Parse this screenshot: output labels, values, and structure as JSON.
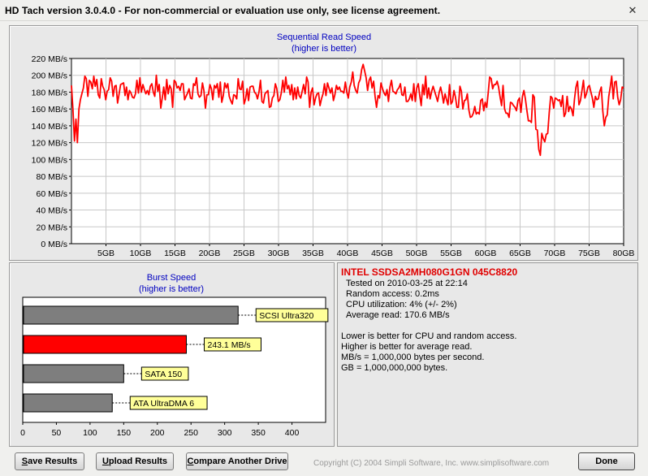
{
  "window": {
    "title": "HD Tach version 3.0.4.0  - For non-commercial or evaluation use only, see license agreement.",
    "close_icon": "close-icon"
  },
  "sequential_chart": {
    "title": "Sequential Read Speed",
    "subtitle": "(higher is better)",
    "line_color": "#ff0000"
  },
  "burst_chart": {
    "title": "Burst Speed",
    "subtitle": "(higher is better)"
  },
  "chart_data": [
    {
      "type": "line",
      "title": "Sequential Read Speed",
      "subtitle": "(higher is better)",
      "xlabel": "",
      "ylabel": "",
      "ylim": [
        0,
        220
      ],
      "xlim": [
        0,
        80
      ],
      "y_ticks": [
        0,
        20,
        40,
        60,
        80,
        100,
        120,
        140,
        160,
        180,
        200,
        220
      ],
      "y_tick_labels": [
        "0 MB/s",
        "20 MB/s",
        "40 MB/s",
        "60 MB/s",
        "80 MB/s",
        "100 MB/s",
        "120 MB/s",
        "140 MB/s",
        "160 MB/s",
        "180 MB/s",
        "200 MB/s",
        "220 MB/s"
      ],
      "x_ticks": [
        5,
        10,
        15,
        20,
        25,
        30,
        35,
        40,
        45,
        50,
        55,
        60,
        65,
        70,
        75,
        80
      ],
      "x_tick_labels": [
        "5GB",
        "10GB",
        "15GB",
        "20GB",
        "25GB",
        "30GB",
        "35GB",
        "40GB",
        "45GB",
        "50GB",
        "55GB",
        "60GB",
        "65GB",
        "70GB",
        "75GB",
        "80GB"
      ],
      "grid": true,
      "series": [
        {
          "values": [
            188,
            160,
            122,
            148,
            120,
            160,
            171,
            178,
            185,
            199,
            196,
            175,
            194,
            192,
            184,
            199,
            187,
            195,
            177,
            173,
            196,
            187,
            183,
            171,
            181,
            183,
            197,
            193,
            175,
            187,
            188,
            167,
            178,
            189,
            190,
            191,
            176,
            186,
            171,
            182,
            179,
            174,
            173,
            178,
            194,
            179,
            197,
            180,
            189,
            183,
            178,
            182,
            177,
            187,
            190,
            180,
            175,
            200,
            181,
            189,
            161,
            173,
            186,
            171,
            195,
            178,
            188,
            184,
            162,
            194,
            192,
            185,
            187,
            182,
            190,
            190,
            171,
            175,
            179,
            184,
            173,
            172,
            190,
            188,
            197,
            178,
            174,
            176,
            191,
            182,
            161,
            177,
            177,
            189,
            184,
            171,
            188,
            185,
            190,
            174,
            192,
            168,
            176,
            191,
            185,
            190,
            175,
            170,
            166,
            177,
            176,
            172,
            196,
            184,
            183,
            193,
            166,
            172,
            184,
            170,
            186,
            187,
            187,
            180,
            178,
            172,
            180,
            194,
            169,
            167,
            178,
            180,
            182,
            162,
            163,
            173,
            176,
            190,
            184,
            169,
            171,
            179,
            194,
            180,
            198,
            184,
            188,
            177,
            189,
            171,
            185,
            172,
            186,
            176,
            173,
            181,
            189,
            178,
            198,
            192,
            162,
            180,
            185,
            165,
            173,
            178,
            179,
            164,
            172,
            178,
            190,
            176,
            191,
            185,
            179,
            185,
            170,
            177,
            188,
            183,
            186,
            181,
            181,
            179,
            192,
            180,
            173,
            186,
            192,
            204,
            188,
            182,
            179,
            191,
            195,
            207,
            213,
            205,
            197,
            182,
            194,
            198,
            185,
            193,
            175,
            162,
            176,
            173,
            191,
            184,
            179,
            176,
            183,
            169,
            186,
            194,
            181,
            180,
            178,
            183,
            185,
            190,
            177,
            176,
            186,
            169,
            169,
            172,
            178,
            170,
            190,
            169,
            185,
            190,
            176,
            164,
            189,
            177,
            199,
            173,
            185,
            172,
            181,
            187,
            181,
            175,
            169,
            179,
            186,
            178,
            167,
            178,
            171,
            165,
            189,
            166,
            169,
            182,
            174,
            162,
            162,
            187,
            181,
            160,
            170,
            171,
            178,
            159,
            150,
            151,
            155,
            163,
            154,
            156,
            154,
            170,
            172,
            158,
            168,
            162,
            179,
            198,
            196,
            184,
            189,
            189,
            193,
            186,
            174,
            164,
            188,
            160,
            155,
            155,
            150,
            168,
            167,
            164,
            162,
            158,
            170,
            173,
            156,
            175,
            182,
            172,
            158,
            146,
            146,
            144,
            177,
            174,
            136,
            135,
            112,
            105,
            131,
            125,
            121,
            130,
            131,
            156,
            175,
            173,
            161,
            173,
            172,
            170,
            171,
            163,
            176,
            151,
            155,
            175,
            157,
            163,
            160,
            152,
            172,
            186,
            193,
            165,
            170,
            182,
            194,
            173,
            178,
            186,
            188,
            180,
            173,
            162,
            175,
            171,
            172,
            181,
            186,
            158,
            140,
            150,
            153,
            175,
            186,
            199,
            172,
            192,
            193,
            174,
            165,
            171,
            186,
            185
          ],
          "color": "#ff0000"
        }
      ]
    },
    {
      "type": "bar",
      "orientation": "horizontal",
      "title": "Burst Speed",
      "subtitle": "(higher is better)",
      "xlim": [
        0,
        450
      ],
      "x_ticks": [
        0,
        50,
        100,
        150,
        200,
        250,
        300,
        350,
        400
      ],
      "categories": [
        "SCSI Ultra320",
        "243.1 MB/s",
        "SATA 150",
        "ATA UltraDMA 6"
      ],
      "values": [
        320,
        243.1,
        150,
        133
      ],
      "colors": [
        "#7e7e7e",
        "#ff0000",
        "#7e7e7e",
        "#7e7e7e"
      ],
      "label_fill": "#ffff99"
    }
  ],
  "info": {
    "drive_name": "INTEL SSDSA2MH080G1GN 045C8820",
    "lines": [
      "Tested on 2010-03-25 at 22:14",
      "Random access: 0.2ms",
      "CPU utilization: 4% (+/- 2%)",
      "Average read: 170.6 MB/s"
    ],
    "notes": [
      "Lower is better for CPU and random access.",
      "Higher is better for average read.",
      "MB/s = 1,000,000 bytes per second.",
      "GB = 1,000,000,000 bytes."
    ]
  },
  "footer": {
    "save_label_u": "S",
    "save_label_rest": "ave Results",
    "upload_label_u": "U",
    "upload_label_rest": "pload Results",
    "compare_label_u": "C",
    "compare_label_rest": "ompare Another Drive",
    "copyright": "Copyright (C) 2004 Simpli Software, Inc. www.simplisoftware.com",
    "done_label": "Done"
  }
}
